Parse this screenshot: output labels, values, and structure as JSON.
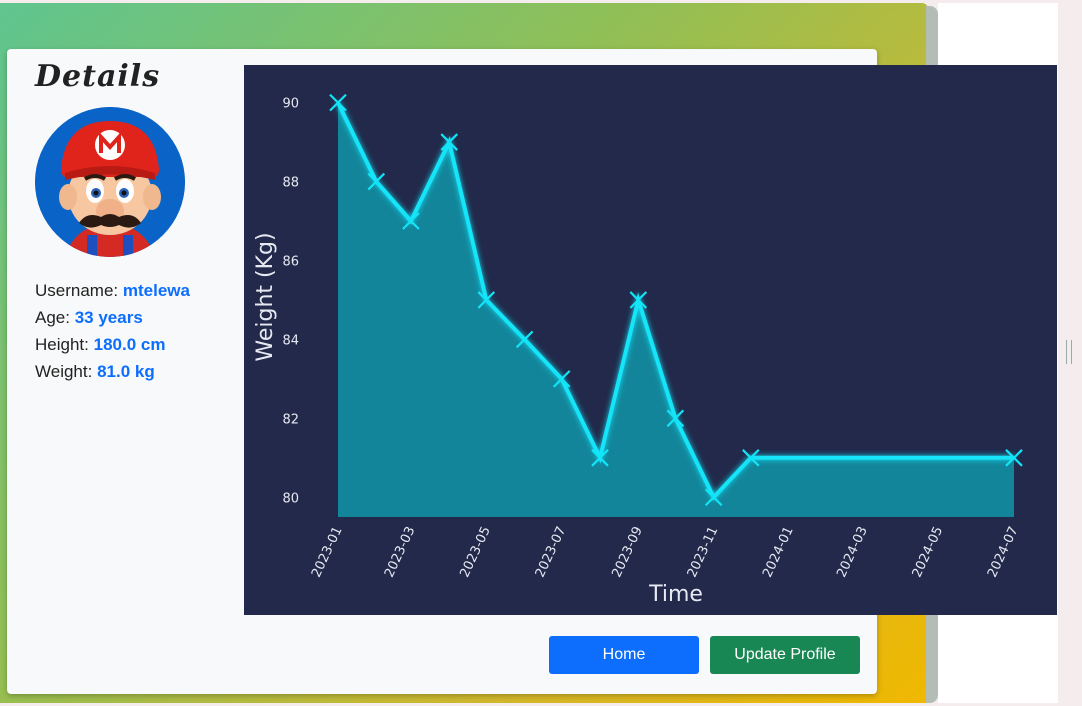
{
  "details": {
    "title": "Details",
    "username_label": "Username:",
    "username": "mtelewa",
    "age_label": "Age:",
    "age": "33 years",
    "height_label": "Height:",
    "height": "180.0 cm",
    "weight_label": "Weight:",
    "weight": "81.0 kg"
  },
  "buttons": {
    "home": "Home",
    "update_profile": "Update Profile"
  },
  "colors": {
    "line": "#12e4f8",
    "area": "#138a9e",
    "chart_bg": "#22294a"
  },
  "chart_data": {
    "type": "area",
    "title": "",
    "xlabel": "Time",
    "ylabel": "Weight (Kg)",
    "x": [
      "2023-01-01",
      "2023-02-01",
      "2023-03-01",
      "2023-04-01",
      "2023-05-01",
      "2023-06-01",
      "2023-07-01",
      "2023-08-01",
      "2023-09-01",
      "2023-10-01",
      "2023-11-01",
      "2023-12-01",
      "2024-07-01"
    ],
    "y": [
      90,
      88,
      87,
      89,
      85,
      84,
      83,
      81,
      85,
      82,
      80,
      81,
      81
    ],
    "xticks": [
      "2023-01",
      "2023-03",
      "2023-05",
      "2023-07",
      "2023-09",
      "2023-11",
      "2024-01",
      "2024-03",
      "2024-05",
      "2024-07"
    ],
    "yticks": [
      80,
      82,
      84,
      86,
      88,
      90
    ],
    "ylim": [
      79.5,
      90.7
    ],
    "xlim": [
      "2023-01-01",
      "2024-07-01"
    ],
    "marker": "x",
    "grid": false
  }
}
